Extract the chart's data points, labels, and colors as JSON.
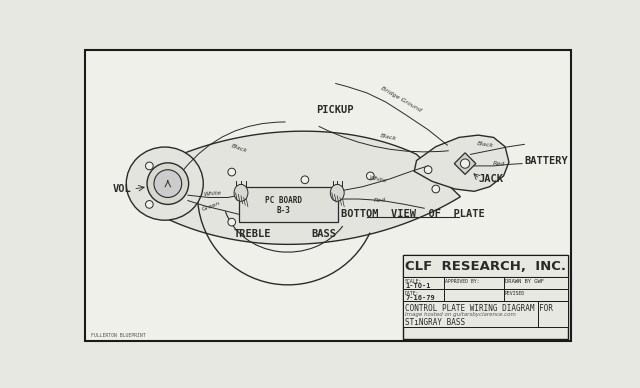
{
  "bg_color": "#e8e8e2",
  "paper_color": "#f0f0ea",
  "border_color": "#1a1a1a",
  "line_color": "#2a2a2a",
  "plate_fill": "#e8e8e2",
  "title": "CLF  RESEARCH,  INC.",
  "scale_val": "1-TO-1",
  "date_val": "7-16-79",
  "approved_label": "APPROVED BY:",
  "drawn_label": "DRAWN BY GWF",
  "revised_label": "REVISED",
  "scale_label": "SCALE:",
  "date_label": "DATE:",
  "desc1": "CONTROL PLATE WIRING DIAGRAM FOR",
  "desc2": "STıNGRAY BASS",
  "bottom_view": "BOTTOM  VIEW  OF  PLATE",
  "watermark": "Image hosted on guitarsbyclarence.com",
  "fullerton_blueprint": "FULLERTON BLUEPRINT",
  "pickup_label": "PICKUP",
  "vol_label": "VOL",
  "treble_label": "TREBLE",
  "bass_label": "BASS",
  "battery_label": "BATTERY",
  "jack_label": "JACK",
  "label_black1": "Black",
  "label_white1": "White",
  "label_green": "Green",
  "label_white2": "White",
  "label_black2": "Black",
  "label_red": "Red",
  "label_bridge": "Bridge Ground",
  "label_black3": "Black",
  "label_red2": "Red"
}
